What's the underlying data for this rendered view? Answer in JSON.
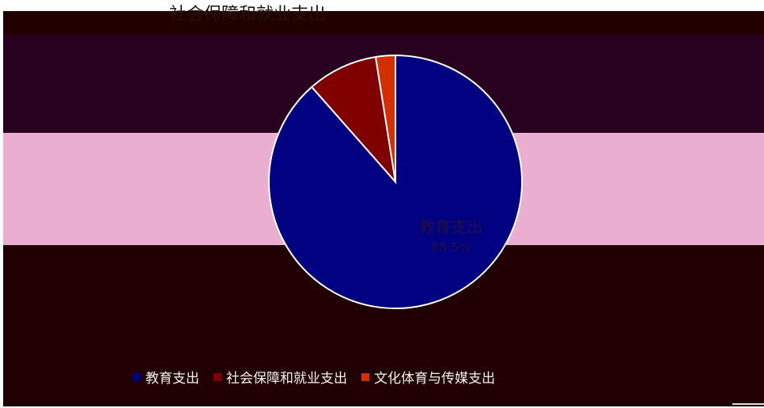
{
  "chart_data": {
    "type": "pie",
    "title": "社会保障和就业支出",
    "slices": [
      {
        "name": "教育支出",
        "value": 88.5,
        "color": "#000080"
      },
      {
        "name": "社会保障和就业支出",
        "value": 9.0,
        "color": "#800000"
      },
      {
        "name": "文化体育与传媒支出",
        "value": 2.5,
        "color": "#d42f00"
      }
    ],
    "data_label": {
      "name": "教育支出",
      "percent_text": "88.5%"
    },
    "legend": {
      "placement": "bottom"
    }
  },
  "legend": [
    {
      "label": "教育支出",
      "color": "#000080"
    },
    {
      "label": "社会保障和就业支出",
      "color": "#800000"
    },
    {
      "label": "文化体育与传媒支出",
      "color": "#d42f00"
    }
  ]
}
